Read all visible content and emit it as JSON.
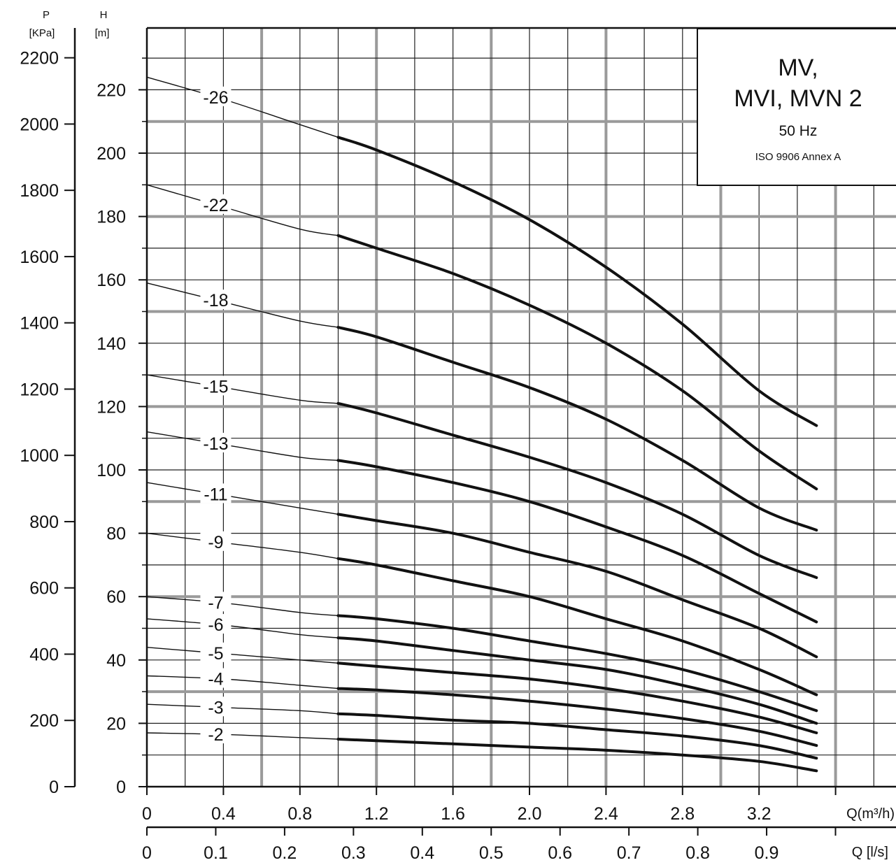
{
  "chart_data": {
    "type": "line",
    "title": "MV, MVI, MVN 2",
    "title_lines": [
      "MV,",
      "MVI, MVN 2"
    ],
    "frequency": "50 Hz",
    "standard": "ISO 9906 Annex A",
    "y_axis_H": {
      "label": "H",
      "unit": "[m]",
      "range": [
        0,
        240
      ],
      "ticks": [
        "0",
        "20",
        "40",
        "60",
        "80",
        "100",
        "120",
        "140",
        "160",
        "180",
        "200",
        "220"
      ]
    },
    "y_axis_P": {
      "label": "P",
      "unit": "[KPa]",
      "range": [
        0,
        2300
      ],
      "ticks": [
        "0",
        "200",
        "400",
        "600",
        "800",
        "1000",
        "1200",
        "1400",
        "1600",
        "1800",
        "2000",
        "2200"
      ]
    },
    "x_axis_Q_m3h": {
      "label": "Q(m³/h)",
      "range": [
        0,
        4.0
      ],
      "ticks": [
        "0",
        "0.4",
        "0.8",
        "1.2",
        "1.6",
        "2.0",
        "2.4",
        "2.8",
        "3.2"
      ]
    },
    "x_axis_Q_ls": {
      "label": "Q [l/s]",
      "ticks": [
        "0",
        "0.1",
        "0.2",
        "0.3",
        "0.4",
        "0.5",
        "0.6",
        "0.7",
        "0.8",
        "0.9"
      ]
    },
    "grid": true,
    "operating_range_Q_m3h": [
      1.0,
      3.5
    ],
    "series": [
      {
        "name": "-26",
        "Q": [
          0,
          0.4,
          0.8,
          1.0,
          1.2,
          1.6,
          2.0,
          2.4,
          2.8,
          3.2,
          3.5
        ],
        "H": [
          224,
          217,
          209,
          205,
          201,
          191,
          179,
          164,
          146,
          125,
          114
        ]
      },
      {
        "name": "-22",
        "Q": [
          0,
          0.4,
          0.8,
          1.0,
          1.2,
          1.6,
          2.0,
          2.4,
          2.8,
          3.2,
          3.5
        ],
        "H": [
          190,
          183,
          176,
          174,
          170,
          162,
          152,
          140,
          125,
          106,
          94
        ]
      },
      {
        "name": "-18",
        "Q": [
          0,
          0.4,
          0.8,
          1.0,
          1.2,
          1.6,
          2.0,
          2.4,
          2.8,
          3.2,
          3.5
        ],
        "H": [
          159,
          153,
          147,
          145,
          142,
          134,
          126,
          116,
          103,
          88,
          81
        ]
      },
      {
        "name": "-15",
        "Q": [
          0,
          0.4,
          0.8,
          1.0,
          1.2,
          1.6,
          2.0,
          2.4,
          2.8,
          3.2,
          3.5
        ],
        "H": [
          130,
          126,
          122,
          121,
          118,
          111,
          104,
          96,
          86,
          73,
          66
        ]
      },
      {
        "name": "-13",
        "Q": [
          0,
          0.4,
          0.8,
          1.0,
          1.2,
          1.6,
          2.0,
          2.4,
          2.8,
          3.2,
          3.5
        ],
        "H": [
          112,
          108,
          104,
          103,
          101,
          96,
          90,
          82,
          73,
          61,
          52
        ]
      },
      {
        "name": "-11",
        "Q": [
          0,
          0.4,
          0.8,
          1.0,
          1.2,
          1.6,
          2.0,
          2.4,
          2.8,
          3.2,
          3.5
        ],
        "H": [
          96,
          92,
          88,
          86,
          84,
          80,
          74,
          68,
          59,
          50,
          41
        ]
      },
      {
        "name": "-9",
        "Q": [
          0,
          0.4,
          0.8,
          1.0,
          1.2,
          1.6,
          2.0,
          2.4,
          2.8,
          3.2,
          3.5
        ],
        "H": [
          80,
          77,
          74,
          72,
          70,
          65,
          60,
          53,
          46,
          37,
          29
        ]
      },
      {
        "name": "-7",
        "Q": [
          0,
          0.4,
          0.8,
          1.0,
          1.2,
          1.6,
          2.0,
          2.4,
          2.8,
          3.2,
          3.5
        ],
        "H": [
          60,
          58,
          55,
          54,
          53,
          50,
          46,
          42,
          37,
          30,
          24
        ]
      },
      {
        "name": "-6",
        "Q": [
          0,
          0.4,
          0.8,
          1.0,
          1.2,
          1.6,
          2.0,
          2.4,
          2.8,
          3.2,
          3.5
        ],
        "H": [
          53,
          51,
          48,
          47,
          46,
          43,
          40,
          37,
          32,
          26,
          20
        ]
      },
      {
        "name": "-5",
        "Q": [
          0,
          0.4,
          0.8,
          1.0,
          1.2,
          1.6,
          2.0,
          2.4,
          2.8,
          3.2,
          3.5
        ],
        "H": [
          44,
          42,
          40,
          39,
          38,
          36,
          34,
          31,
          27,
          22,
          17
        ]
      },
      {
        "name": "-4",
        "Q": [
          0,
          0.4,
          0.8,
          1.0,
          1.2,
          1.6,
          2.0,
          2.4,
          2.8,
          3.2,
          3.5
        ],
        "H": [
          35,
          34,
          32,
          31,
          30.5,
          29,
          27,
          24.5,
          21.5,
          17.5,
          13
        ]
      },
      {
        "name": "-3",
        "Q": [
          0,
          0.4,
          0.8,
          1.0,
          1.2,
          1.6,
          2.0,
          2.4,
          2.8,
          3.2,
          3.5
        ],
        "H": [
          26,
          25,
          24,
          23,
          22.5,
          21,
          20,
          18,
          16,
          13,
          9
        ]
      },
      {
        "name": "-2",
        "Q": [
          0,
          0.4,
          0.8,
          1.0,
          1.2,
          1.6,
          2.0,
          2.4,
          2.8,
          3.2,
          3.5
        ],
        "H": [
          17,
          16.5,
          15.5,
          15,
          14.5,
          13.5,
          12.5,
          11.5,
          10,
          8,
          5
        ]
      }
    ]
  }
}
